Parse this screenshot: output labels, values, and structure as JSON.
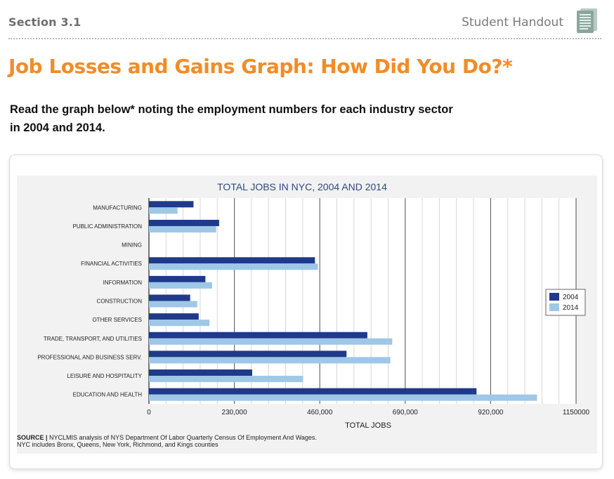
{
  "header": {
    "section": "Section 3.1",
    "handout": "Student Handout",
    "handout_icon": "document-icon"
  },
  "title": "Job Losses and Gains Graph: How Did You Do?*",
  "intro": {
    "line1": "Read the graph below* noting the employment numbers for each industry sector",
    "line2": "in 2004 and 2014."
  },
  "source": {
    "label": "SOURCE |",
    "line1": "NYCLMIS analysis of NYS Department Of Labor Quarterly Census Of Employment And Wages.",
    "line2": "NYC includes Bronx, Queens, New York, Richmond, and Kings counties"
  },
  "chart_data": {
    "type": "bar",
    "orientation": "horizontal",
    "title": "TOTAL JOBS IN NYC, 2004 AND 2014",
    "xlabel": "TOTAL JOBS",
    "ylabel": "",
    "xlim": [
      0,
      1150000
    ],
    "ticks": [
      0,
      230000,
      460000,
      690000,
      920000,
      1150000
    ],
    "tick_labels": [
      "0",
      "230,000",
      "460,000",
      "690,000",
      "920,000",
      "1150000"
    ],
    "grid": true,
    "legend_position": "right",
    "categories": [
      "MANUFACTURING",
      "PUBLIC ADMINISTRATION",
      "MINING",
      "FINANCIAL ACTIVITIES",
      "INFORMATION",
      "CONSTRUCTION",
      "OTHER SERVICES",
      "TRADE, TRANSPORT, AND UTILITIES",
      "PROFESSIONAL AND BUSINESS SERV.",
      "LEISURE AND HOSPITALITY",
      "EDUCATION AND HEALTH"
    ],
    "series": [
      {
        "name": "2004",
        "color": "#1f3a8a",
        "values": [
          120000,
          189000,
          0,
          447000,
          152000,
          111000,
          134000,
          588000,
          532000,
          278000,
          882000
        ]
      },
      {
        "name": "2014",
        "color": "#9fc7e7",
        "values": [
          77000,
          181000,
          0,
          455000,
          170000,
          130000,
          163000,
          655000,
          650000,
          415000,
          1045000
        ]
      }
    ]
  }
}
